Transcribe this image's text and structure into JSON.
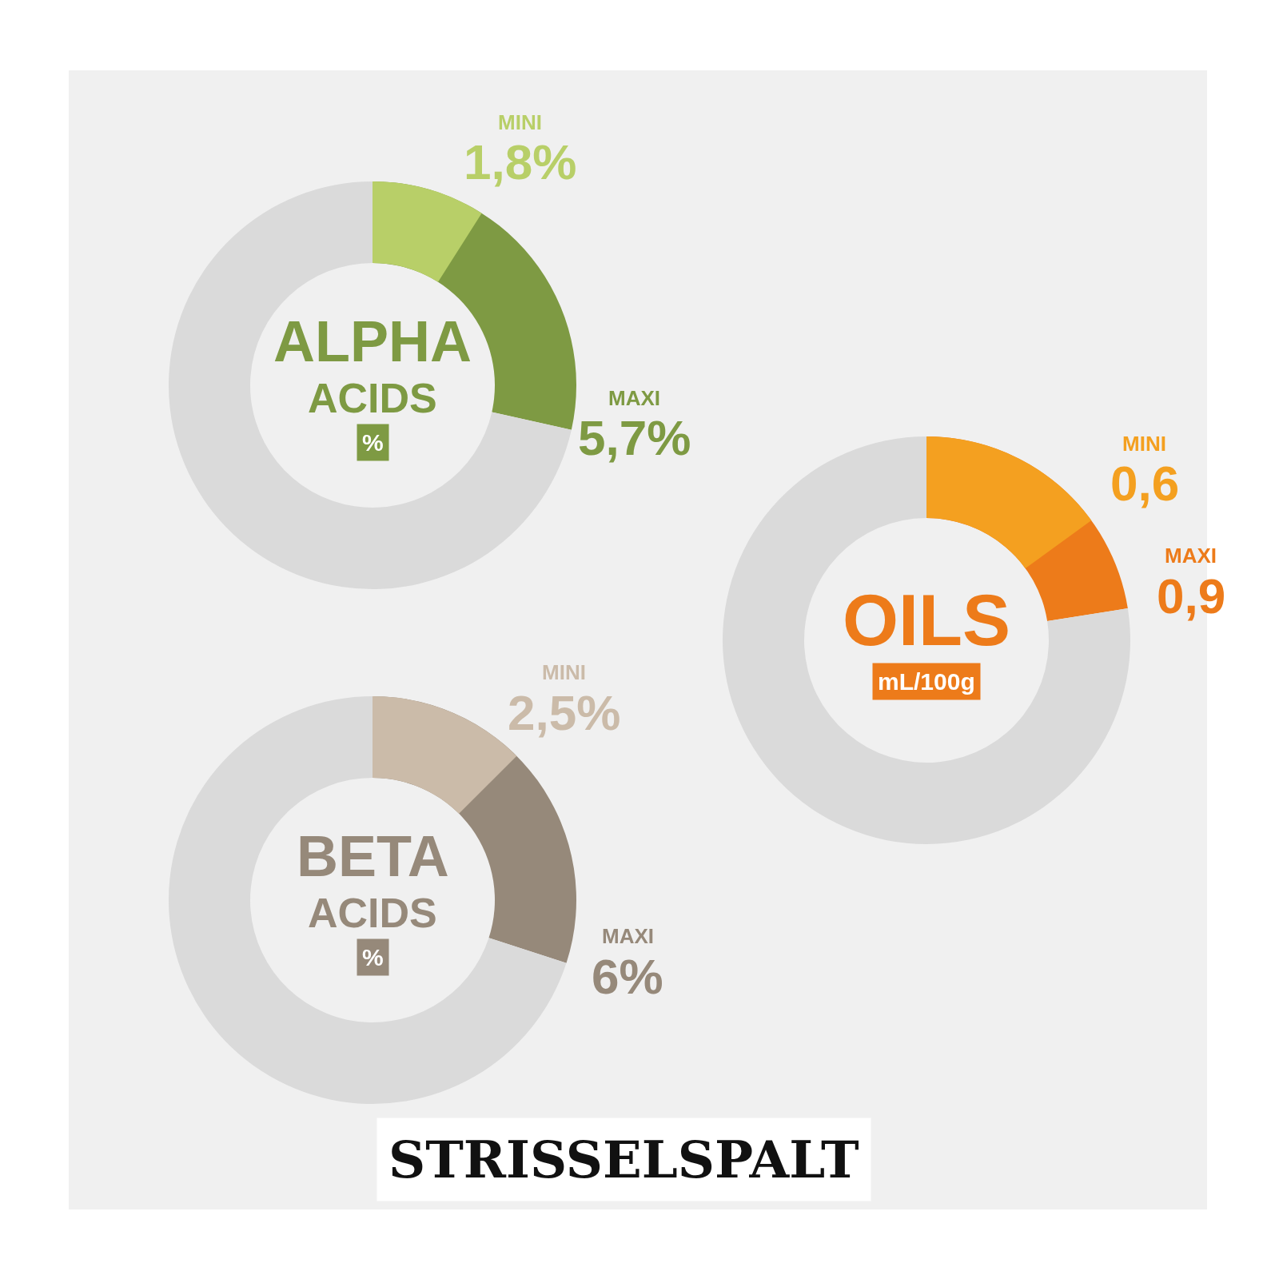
{
  "chart_data": [
    {
      "type": "donut",
      "categories": [
        "MINI",
        "MAXI",
        null
      ],
      "values": [
        1.8,
        5.7,
        14.3
      ],
      "colors": [
        "#b8cf68",
        "#7e9a43",
        "#dadada"
      ],
      "value_labels": [
        "1,8%",
        "5,7%",
        null
      ],
      "annotations": [
        "ALPHA",
        "ACIDS",
        "%"
      ]
    },
    {
      "type": "donut",
      "categories": [
        "MINI",
        "MAXI",
        null
      ],
      "values": [
        0.6,
        0.9,
        3.1
      ],
      "colors": [
        "#f4a020",
        "#ed7b1a",
        "#dadada"
      ],
      "value_labels": [
        "0,6",
        "0,9",
        null
      ],
      "annotations": [
        "OILS",
        "mL/100g"
      ]
    },
    {
      "type": "donut",
      "categories": [
        "MINI",
        "MAXI",
        null
      ],
      "values": [
        2.5,
        6,
        14
      ],
      "colors": [
        "#cbbba9",
        "#96897a",
        "#dadada"
      ],
      "value_labels": [
        "2,5%",
        "6%",
        null
      ],
      "annotations": [
        "BETA",
        "ACIDS",
        "%"
      ]
    },
    {
      "type": "other",
      "title": "STRISSELSPALT"
    }
  ]
}
